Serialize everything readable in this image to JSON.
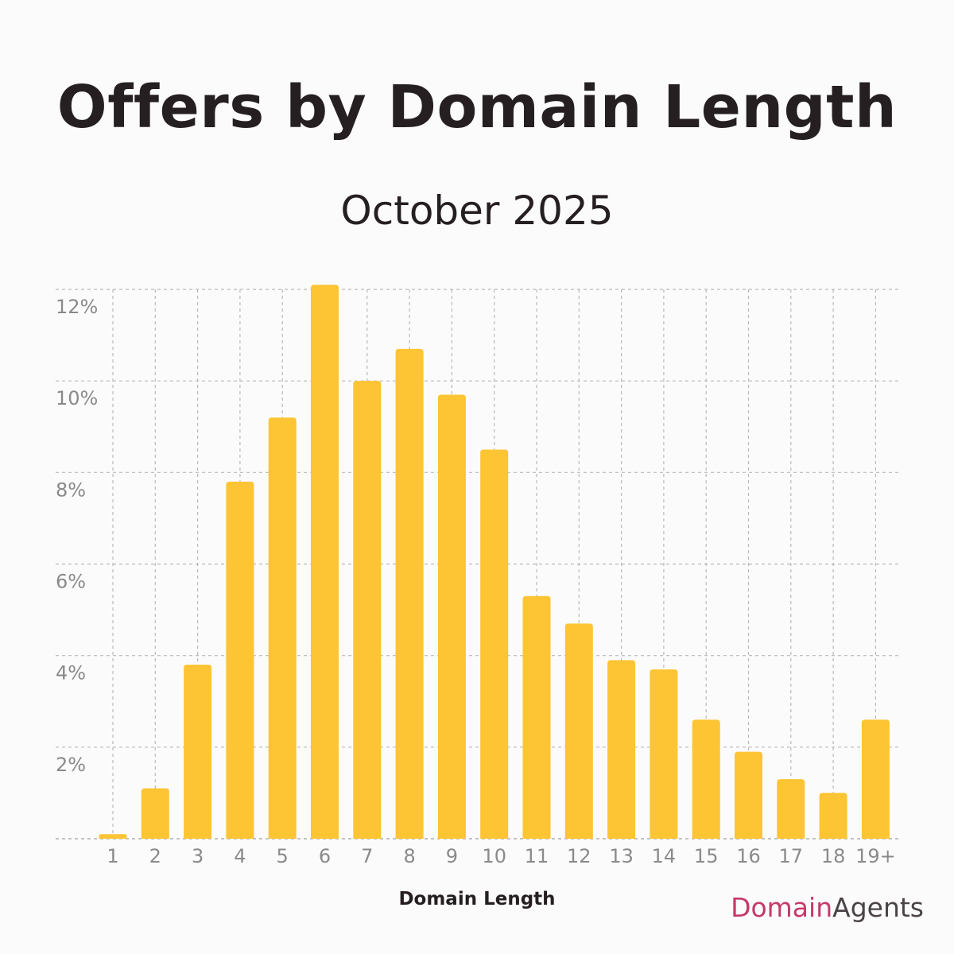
{
  "chart_data": {
    "type": "bar",
    "title": "Offers by Domain Length",
    "subtitle": "October 2025",
    "xlabel": "Domain Length",
    "ylabel": "",
    "categories": [
      "1",
      "2",
      "3",
      "4",
      "5",
      "6",
      "7",
      "8",
      "9",
      "10",
      "11",
      "12",
      "13",
      "14",
      "15",
      "16",
      "17",
      "18",
      "19+"
    ],
    "values": [
      0.1,
      1.1,
      3.8,
      7.8,
      9.2,
      12.1,
      10.0,
      10.7,
      9.7,
      8.5,
      5.3,
      4.7,
      3.9,
      3.7,
      2.6,
      1.9,
      1.3,
      1.0,
      2.6
    ],
    "yticks": [
      2,
      4,
      6,
      8,
      10,
      12
    ],
    "ytick_labels": [
      "2%",
      "4%",
      "6%",
      "8%",
      "10%",
      "12%"
    ],
    "ylim": [
      0,
      12
    ],
    "grid": true,
    "bar_color": "#fdc433"
  },
  "brand": {
    "primary": "Domain",
    "secondary": "Agents",
    "primary_color": "#c53a66"
  }
}
